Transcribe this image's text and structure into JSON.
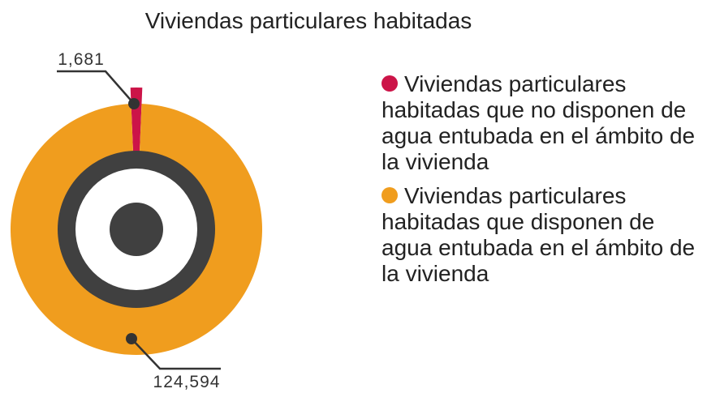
{
  "chart_data": {
    "type": "donut",
    "title": "Viviendas particulares habitadas",
    "categories": [
      "Viviendas particulares habitadas que no disponen de agua entubada en el ámbito de la vivienda",
      "Viviendas particulares habitadas que disponen de agua entubada en el ámbito de la vivienda"
    ],
    "values": [
      1681,
      124594
    ],
    "value_labels": [
      "1,681",
      "124,594"
    ],
    "colors": [
      "#cc1448",
      "#f09d1e"
    ]
  }
}
